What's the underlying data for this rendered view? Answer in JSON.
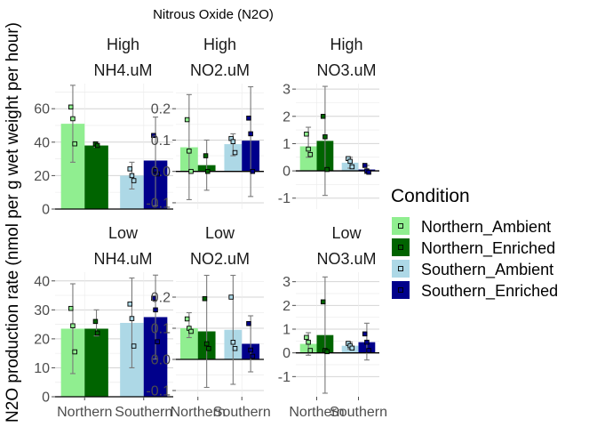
{
  "chart_data": {
    "type": "bar",
    "title": "Nitrous Oxide (N2O)",
    "ylabel": "N2O production rate (nmol per g wet weight per hour)",
    "xlabel": "",
    "categories": [
      "Northern",
      "Southern"
    ],
    "grid": true,
    "legend": {
      "title": "Condition",
      "placement": "right",
      "entries": [
        {
          "name": "Northern_Ambient",
          "color": "#90EE90"
        },
        {
          "name": "Northern_Enriched",
          "color": "#006400"
        },
        {
          "name": "Southern_Ambient",
          "color": "#ADD8E6"
        },
        {
          "name": "Southern_Enriched",
          "color": "#00008B"
        }
      ]
    },
    "panels": [
      {
        "level": "High",
        "analyte": "NH4.uM",
        "ylim": [
          0,
          75
        ],
        "yticks": [
          0,
          20,
          40,
          60
        ],
        "ytick_labels": [
          "0",
          "20",
          "40",
          "60"
        ],
        "bars": [
          {
            "condition": "Northern_Ambient",
            "mean": 51,
            "low": 28,
            "high": 74,
            "points": [
              61,
              54,
              39
            ]
          },
          {
            "condition": "Northern_Enriched",
            "mean": 38,
            "low": 37,
            "high": 40,
            "points": [
              39,
              38
            ]
          },
          {
            "condition": "Southern_Ambient",
            "mean": 20,
            "low": 12,
            "high": 28,
            "points": [
              24,
              20,
              17
            ]
          },
          {
            "condition": "Southern_Enriched",
            "mean": 29,
            "low": 2,
            "high": 55,
            "points": [
              44,
              23,
              21
            ]
          }
        ]
      },
      {
        "level": "High",
        "analyte": "NO2.uM",
        "ylim": [
          -0.12,
          0.28
        ],
        "yticks": [
          -0.1,
          0.0,
          0.1,
          0.2
        ],
        "ytick_labels": [
          "-0.1",
          "0.0",
          "0.1",
          "0.2"
        ],
        "bars": [
          {
            "condition": "Northern_Ambient",
            "mean": 0.077,
            "low": -0.09,
            "high": 0.245,
            "points": [
              0.165,
              0.065,
              0.0
            ]
          },
          {
            "condition": "Northern_Enriched",
            "mean": 0.02,
            "low": -0.06,
            "high": 0.1,
            "points": [
              0.05,
              0.0
            ]
          },
          {
            "condition": "Southern_Ambient",
            "mean": 0.087,
            "low": 0.05,
            "high": 0.12,
            "points": [
              0.105,
              0.095,
              0.06
            ]
          },
          {
            "condition": "Southern_Enriched",
            "mean": 0.098,
            "low": -0.08,
            "high": 0.27,
            "points": [
              0.17,
              0.12,
              0.0
            ]
          }
        ]
      },
      {
        "level": "High",
        "analyte": "NO3.uM",
        "ylim": [
          -1.4,
          3.2
        ],
        "yticks": [
          -1,
          0,
          1,
          2,
          3
        ],
        "ytick_labels": [
          "-1",
          "0",
          "1",
          "2",
          "3"
        ],
        "bars": [
          {
            "condition": "Northern_Ambient",
            "mean": 0.9,
            "low": 0.5,
            "high": 1.6,
            "points": [
              1.35,
              0.8,
              0.6
            ]
          },
          {
            "condition": "Northern_Enriched",
            "mean": 1.1,
            "low": -0.9,
            "high": 3.1,
            "points": [
              2.0,
              1.25,
              0.05
            ]
          },
          {
            "condition": "Southern_Ambient",
            "mean": 0.3,
            "low": 0.1,
            "high": 0.5,
            "points": [
              0.45,
              0.35,
              0.15
            ]
          },
          {
            "condition": "Southern_Enriched",
            "mean": 0.05,
            "low": -0.1,
            "high": 0.2,
            "points": [
              0.2,
              0.0,
              -0.05
            ]
          }
        ]
      },
      {
        "level": "Low",
        "analyte": "NH4.uM",
        "ylim": [
          0,
          43
        ],
        "yticks": [
          0,
          10,
          20,
          30,
          40
        ],
        "ytick_labels": [
          "0",
          "10",
          "20",
          "30",
          "40"
        ],
        "bars": [
          {
            "condition": "Northern_Ambient",
            "mean": 23.5,
            "low": 8,
            "high": 39,
            "points": [
              30.5,
              24.5,
              15.5
            ]
          },
          {
            "condition": "Northern_Enriched",
            "mean": 23.5,
            "low": 21,
            "high": 30,
            "points": [
              26,
              22
            ]
          },
          {
            "condition": "Southern_Ambient",
            "mean": 25.5,
            "low": 10,
            "high": 41,
            "points": [
              32,
              27,
              17.5
            ]
          },
          {
            "condition": "Southern_Enriched",
            "mean": 27.5,
            "low": 13,
            "high": 42,
            "points": [
              34,
              30,
              19
            ]
          }
        ]
      },
      {
        "level": "Low",
        "analyte": "NO2.uM",
        "ylim": [
          -0.12,
          0.28
        ],
        "yticks": [
          -0.1,
          0.0,
          0.1,
          0.2
        ],
        "ytick_labels": [
          "-0.1",
          "0.0",
          "0.1",
          "0.2"
        ],
        "bars": [
          {
            "condition": "Northern_Ambient",
            "mean": 0.1,
            "low": 0.07,
            "high": 0.15,
            "points": [
              0.13,
              0.1,
              0.09
            ]
          },
          {
            "condition": "Northern_Enriched",
            "mean": 0.09,
            "low": -0.09,
            "high": 0.27,
            "points": [
              0.195,
              0.05,
              0.035
            ]
          },
          {
            "condition": "Southern_Ambient",
            "mean": 0.095,
            "low": -0.08,
            "high": 0.27,
            "points": [
              0.2,
              0.055,
              0.035
            ]
          },
          {
            "condition": "Southern_Enriched",
            "mean": 0.05,
            "low": -0.04,
            "high": 0.14,
            "points": [
              0.115,
              0.03,
              0.01
            ]
          }
        ]
      },
      {
        "level": "Low",
        "analyte": "NO3.uM",
        "ylim": [
          -1.85,
          3.4
        ],
        "yticks": [
          -1,
          0,
          1,
          2,
          3
        ],
        "ytick_labels": [
          "-1",
          "0",
          "1",
          "2",
          "3"
        ],
        "bars": [
          {
            "condition": "Northern_Ambient",
            "mean": 0.38,
            "low": -0.1,
            "high": 0.85,
            "points": [
              0.65,
              0.45,
              0.1
            ]
          },
          {
            "condition": "Northern_Enriched",
            "mean": 0.75,
            "low": -1.7,
            "high": 3.2,
            "points": [
              2.15,
              0.1,
              0.05
            ]
          },
          {
            "condition": "Southern_Ambient",
            "mean": 0.3,
            "low": 0.15,
            "high": 0.45,
            "points": [
              0.4,
              0.3,
              0.2
            ]
          },
          {
            "condition": "Southern_Enriched",
            "mean": 0.45,
            "low": -0.3,
            "high": 1.25,
            "points": [
              0.8,
              0.45,
              0.1
            ]
          }
        ]
      }
    ]
  }
}
